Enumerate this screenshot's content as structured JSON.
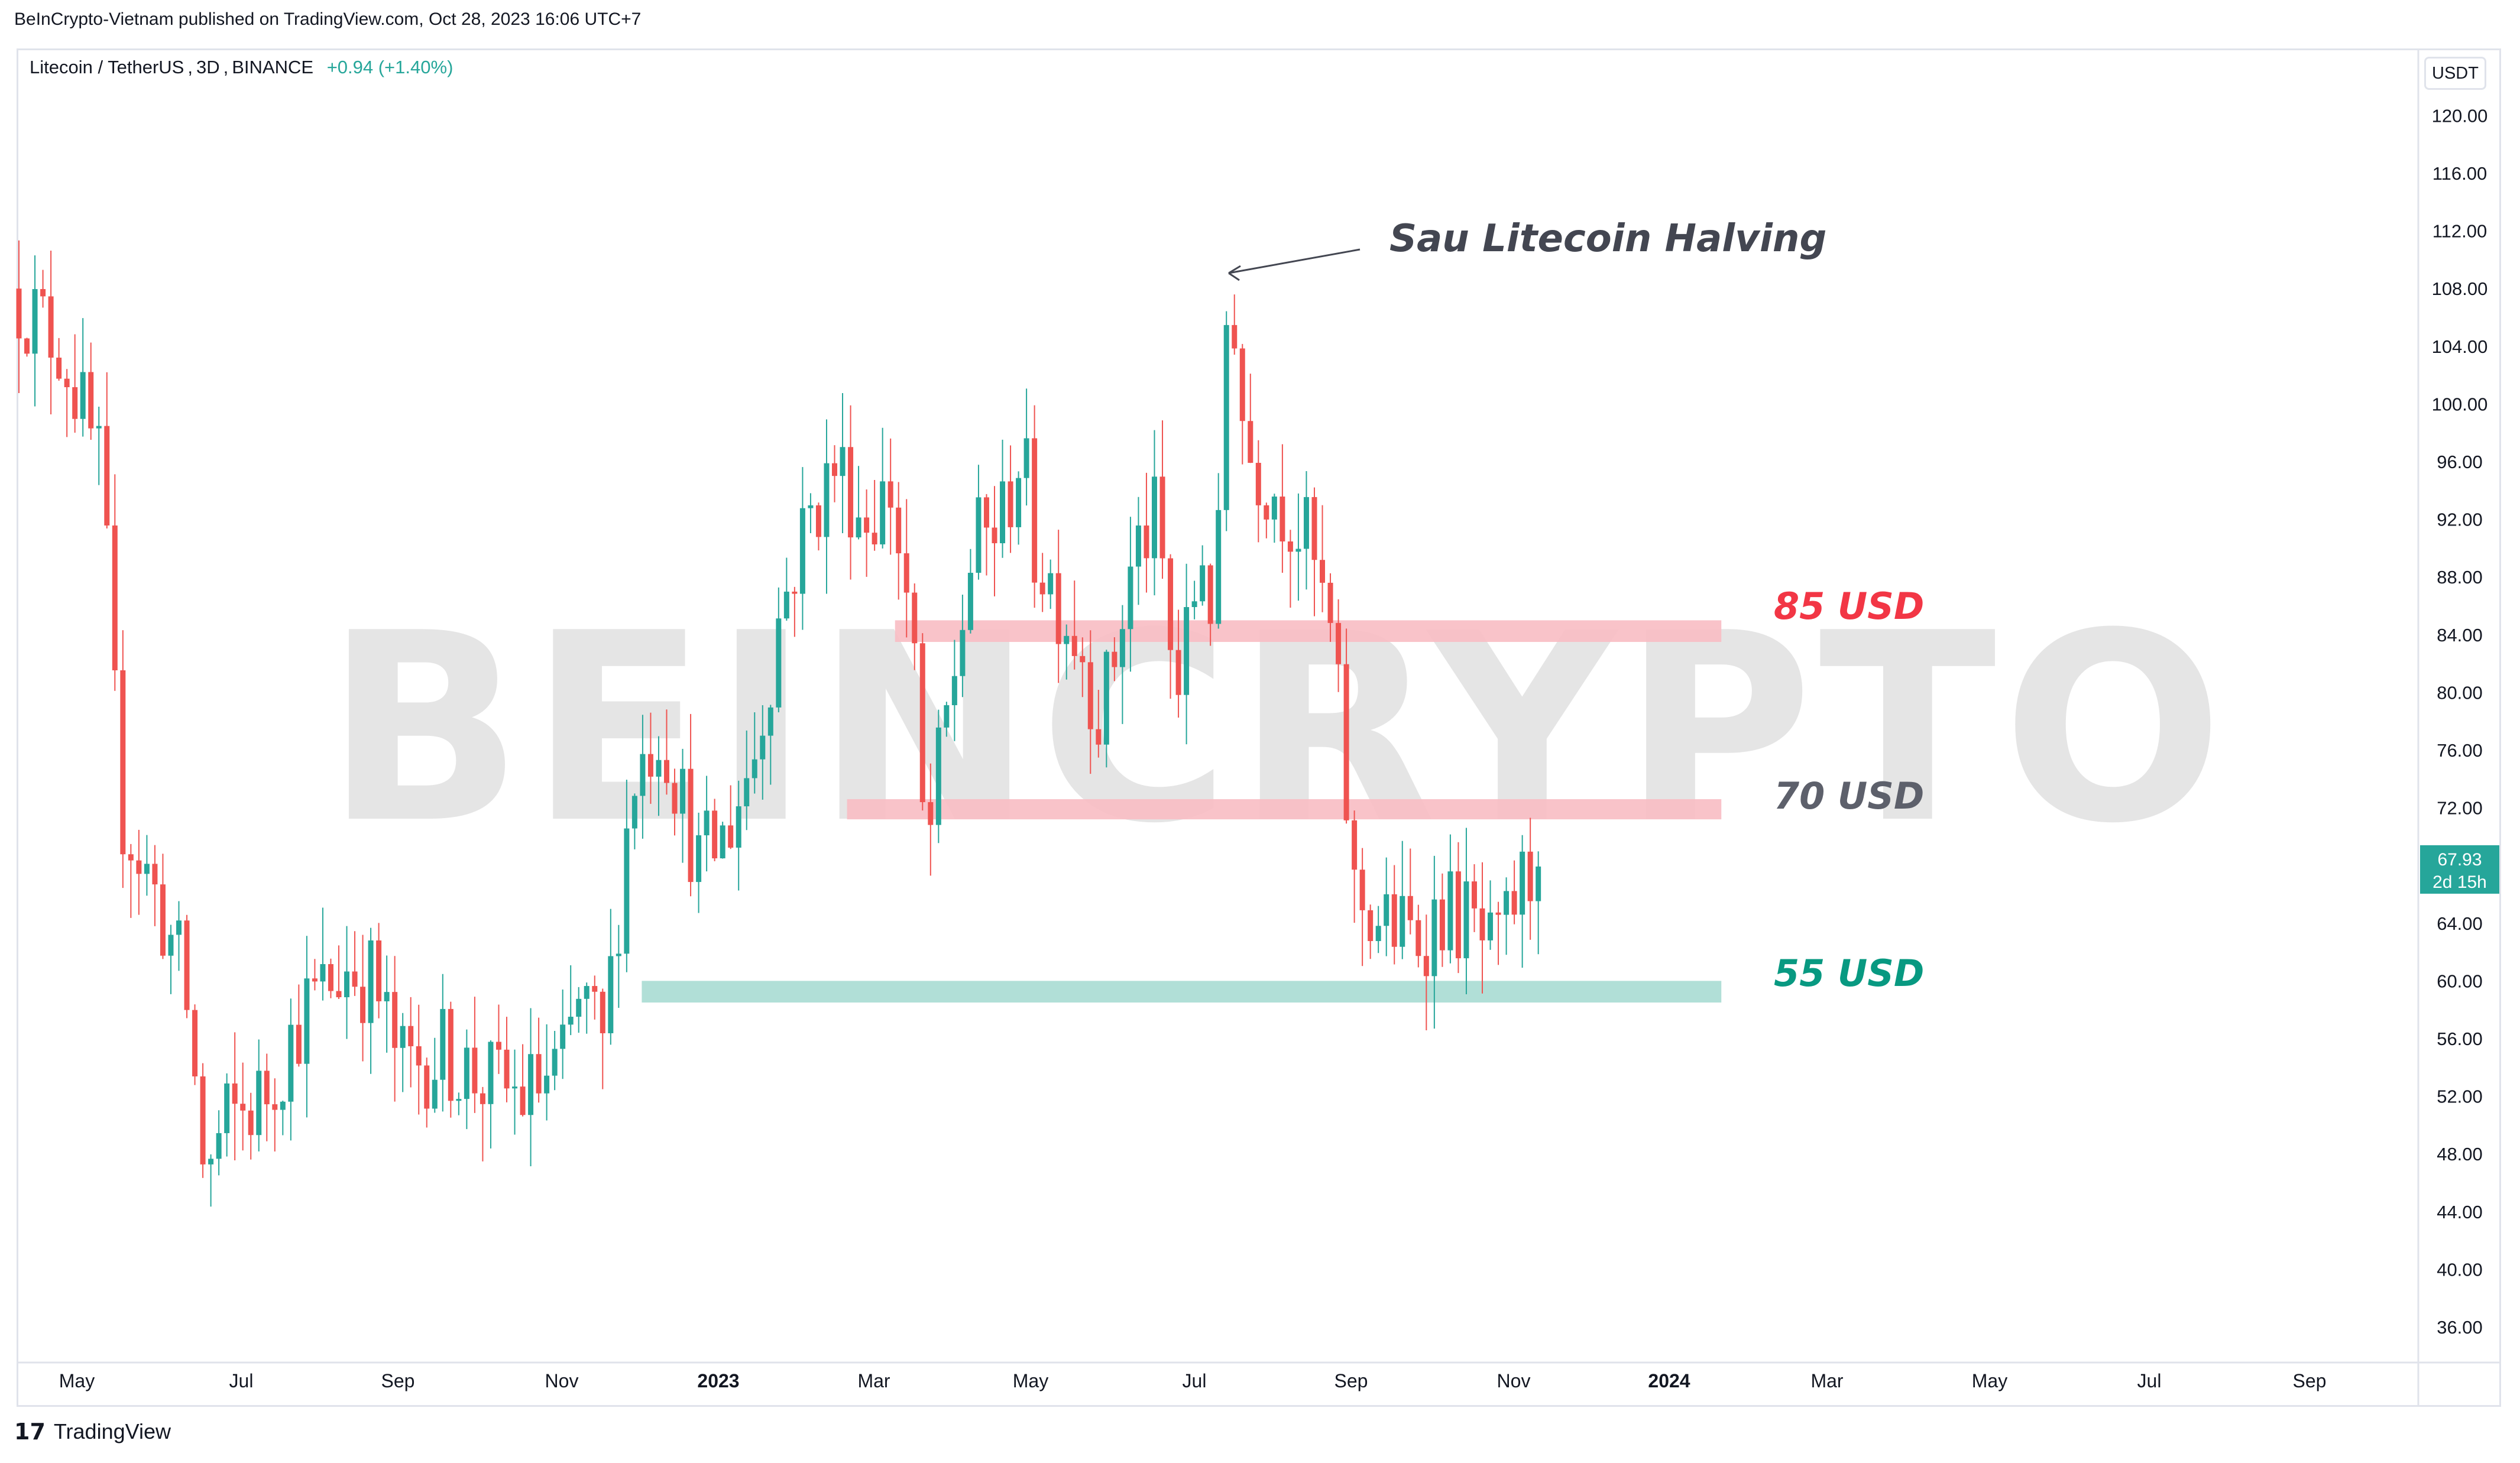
{
  "header": {
    "publisher": "BeInCrypto-Vietnam published on TradingView.com, Oct 28, 2023 16:06 UTC+7"
  },
  "symbol": {
    "name": "Litecoin / TetherUS",
    "interval": "3D",
    "exchange": "BINANCE",
    "change": "+0.94 (+1.40%)"
  },
  "currency": "USDT",
  "last_price": {
    "value": "67.93",
    "countdown": "2d 15h"
  },
  "watermark": "BEINCRYPTO",
  "footer": {
    "brand": "TradingView",
    "logo_glyph": "17"
  },
  "colors": {
    "up": "#26a69a",
    "down": "#ef5350",
    "resistance_zone": "#f8bcc3",
    "support_zone": "#a8dcd3",
    "label_red": "#f23645",
    "label_gray": "#5d606b",
    "label_green": "#089981"
  },
  "chart_data": {
    "type": "candlestick",
    "title": "",
    "x_ticks": [
      "May",
      "Jul",
      "Sep",
      "Nov",
      "2023",
      "Mar",
      "May",
      "Jul",
      "Sep",
      "Nov",
      "2024",
      "Mar",
      "May",
      "Jul",
      "Sep"
    ],
    "y_ticks": [
      120,
      116,
      112,
      108,
      104,
      100,
      96,
      92,
      88,
      84,
      80,
      76,
      72,
      68,
      64,
      60,
      56,
      52,
      48,
      44,
      40,
      36
    ],
    "y_tick_labels": [
      "120.00",
      "116.00",
      "112.00",
      "108.00",
      "104.00",
      "100.00",
      "96.00",
      "92.00",
      "88.00",
      "84.00",
      "80.00",
      "76.00",
      "72.00",
      "68.00",
      "64.00",
      "60.00",
      "56.00",
      "52.00",
      "48.00",
      "44.00",
      "40.00",
      "36.00"
    ],
    "ylim": [
      32.5,
      124
    ],
    "price_path": [
      [
        "2022-04-01",
        108
      ],
      [
        "2022-04-20",
        104
      ],
      [
        "2022-05-05",
        95
      ],
      [
        "2022-05-12",
        72
      ],
      [
        "2022-05-25",
        66
      ],
      [
        "2022-06-05",
        60
      ],
      [
        "2022-06-13",
        46
      ],
      [
        "2022-06-20",
        50
      ],
      [
        "2022-07-05",
        52
      ],
      [
        "2022-07-20",
        58
      ],
      [
        "2022-08-05",
        61
      ],
      [
        "2022-08-15",
        60
      ],
      [
        "2022-08-25",
        54
      ],
      [
        "2022-09-10",
        55
      ],
      [
        "2022-09-25",
        53
      ],
      [
        "2022-10-10",
        52
      ],
      [
        "2022-10-25",
        54
      ],
      [
        "2022-11-01",
        59
      ],
      [
        "2022-11-09",
        55
      ],
      [
        "2022-11-20",
        74
      ],
      [
        "2022-12-01",
        78
      ],
      [
        "2022-12-15",
        68
      ],
      [
        "2022-12-25",
        70
      ],
      [
        "2023-01-05",
        76
      ],
      [
        "2023-01-15",
        86
      ],
      [
        "2023-01-25",
        92
      ],
      [
        "2023-02-05",
        96
      ],
      [
        "2023-02-15",
        92
      ],
      [
        "2023-02-25",
        94
      ],
      [
        "2023-03-05",
        84
      ],
      [
        "2023-03-10",
        68
      ],
      [
        "2023-03-18",
        78
      ],
      [
        "2023-03-28",
        90
      ],
      [
        "2023-04-08",
        92
      ],
      [
        "2023-04-15",
        97
      ],
      [
        "2023-04-20",
        90
      ],
      [
        "2023-04-28",
        87
      ],
      [
        "2023-05-08",
        83
      ],
      [
        "2023-05-15",
        78
      ],
      [
        "2023-05-28",
        90
      ],
      [
        "2023-06-05",
        92
      ],
      [
        "2023-06-12",
        79
      ],
      [
        "2023-06-22",
        90
      ],
      [
        "2023-06-27",
        84
      ],
      [
        "2023-07-02",
        111
      ],
      [
        "2023-07-08",
        97
      ],
      [
        "2023-07-20",
        94
      ],
      [
        "2023-08-01",
        90
      ],
      [
        "2023-08-10",
        83
      ],
      [
        "2023-08-18",
        66
      ],
      [
        "2023-08-28",
        64
      ],
      [
        "2023-09-10",
        63
      ],
      [
        "2023-09-20",
        65
      ],
      [
        "2023-09-30",
        64
      ],
      [
        "2023-10-10",
        61
      ],
      [
        "2023-10-18",
        66
      ],
      [
        "2023-10-25",
        67.93
      ]
    ],
    "x_range": [
      "2022-04-01",
      "2024-10-15"
    ],
    "events": [
      {
        "label": "Sau Litecoin Halving",
        "date": "2023-07-02",
        "price": 108
      }
    ],
    "zones": [
      {
        "label": "85 USD",
        "from": "2023-02-25",
        "to": "2024-01-01",
        "low": 83.5,
        "high": 85,
        "color": "#f8bcc3",
        "label_color": "#f23645"
      },
      {
        "label": "70 USD",
        "from": "2023-02-07",
        "to": "2024-01-01",
        "low": 71.2,
        "high": 72.6,
        "color": "#f8bcc3",
        "label_color": "#5d606b"
      },
      {
        "label": "55 USD",
        "from": "2022-11-22",
        "to": "2024-01-01",
        "low": 58.5,
        "high": 60,
        "color": "#a8dcd3",
        "label_color": "#089981"
      }
    ]
  }
}
